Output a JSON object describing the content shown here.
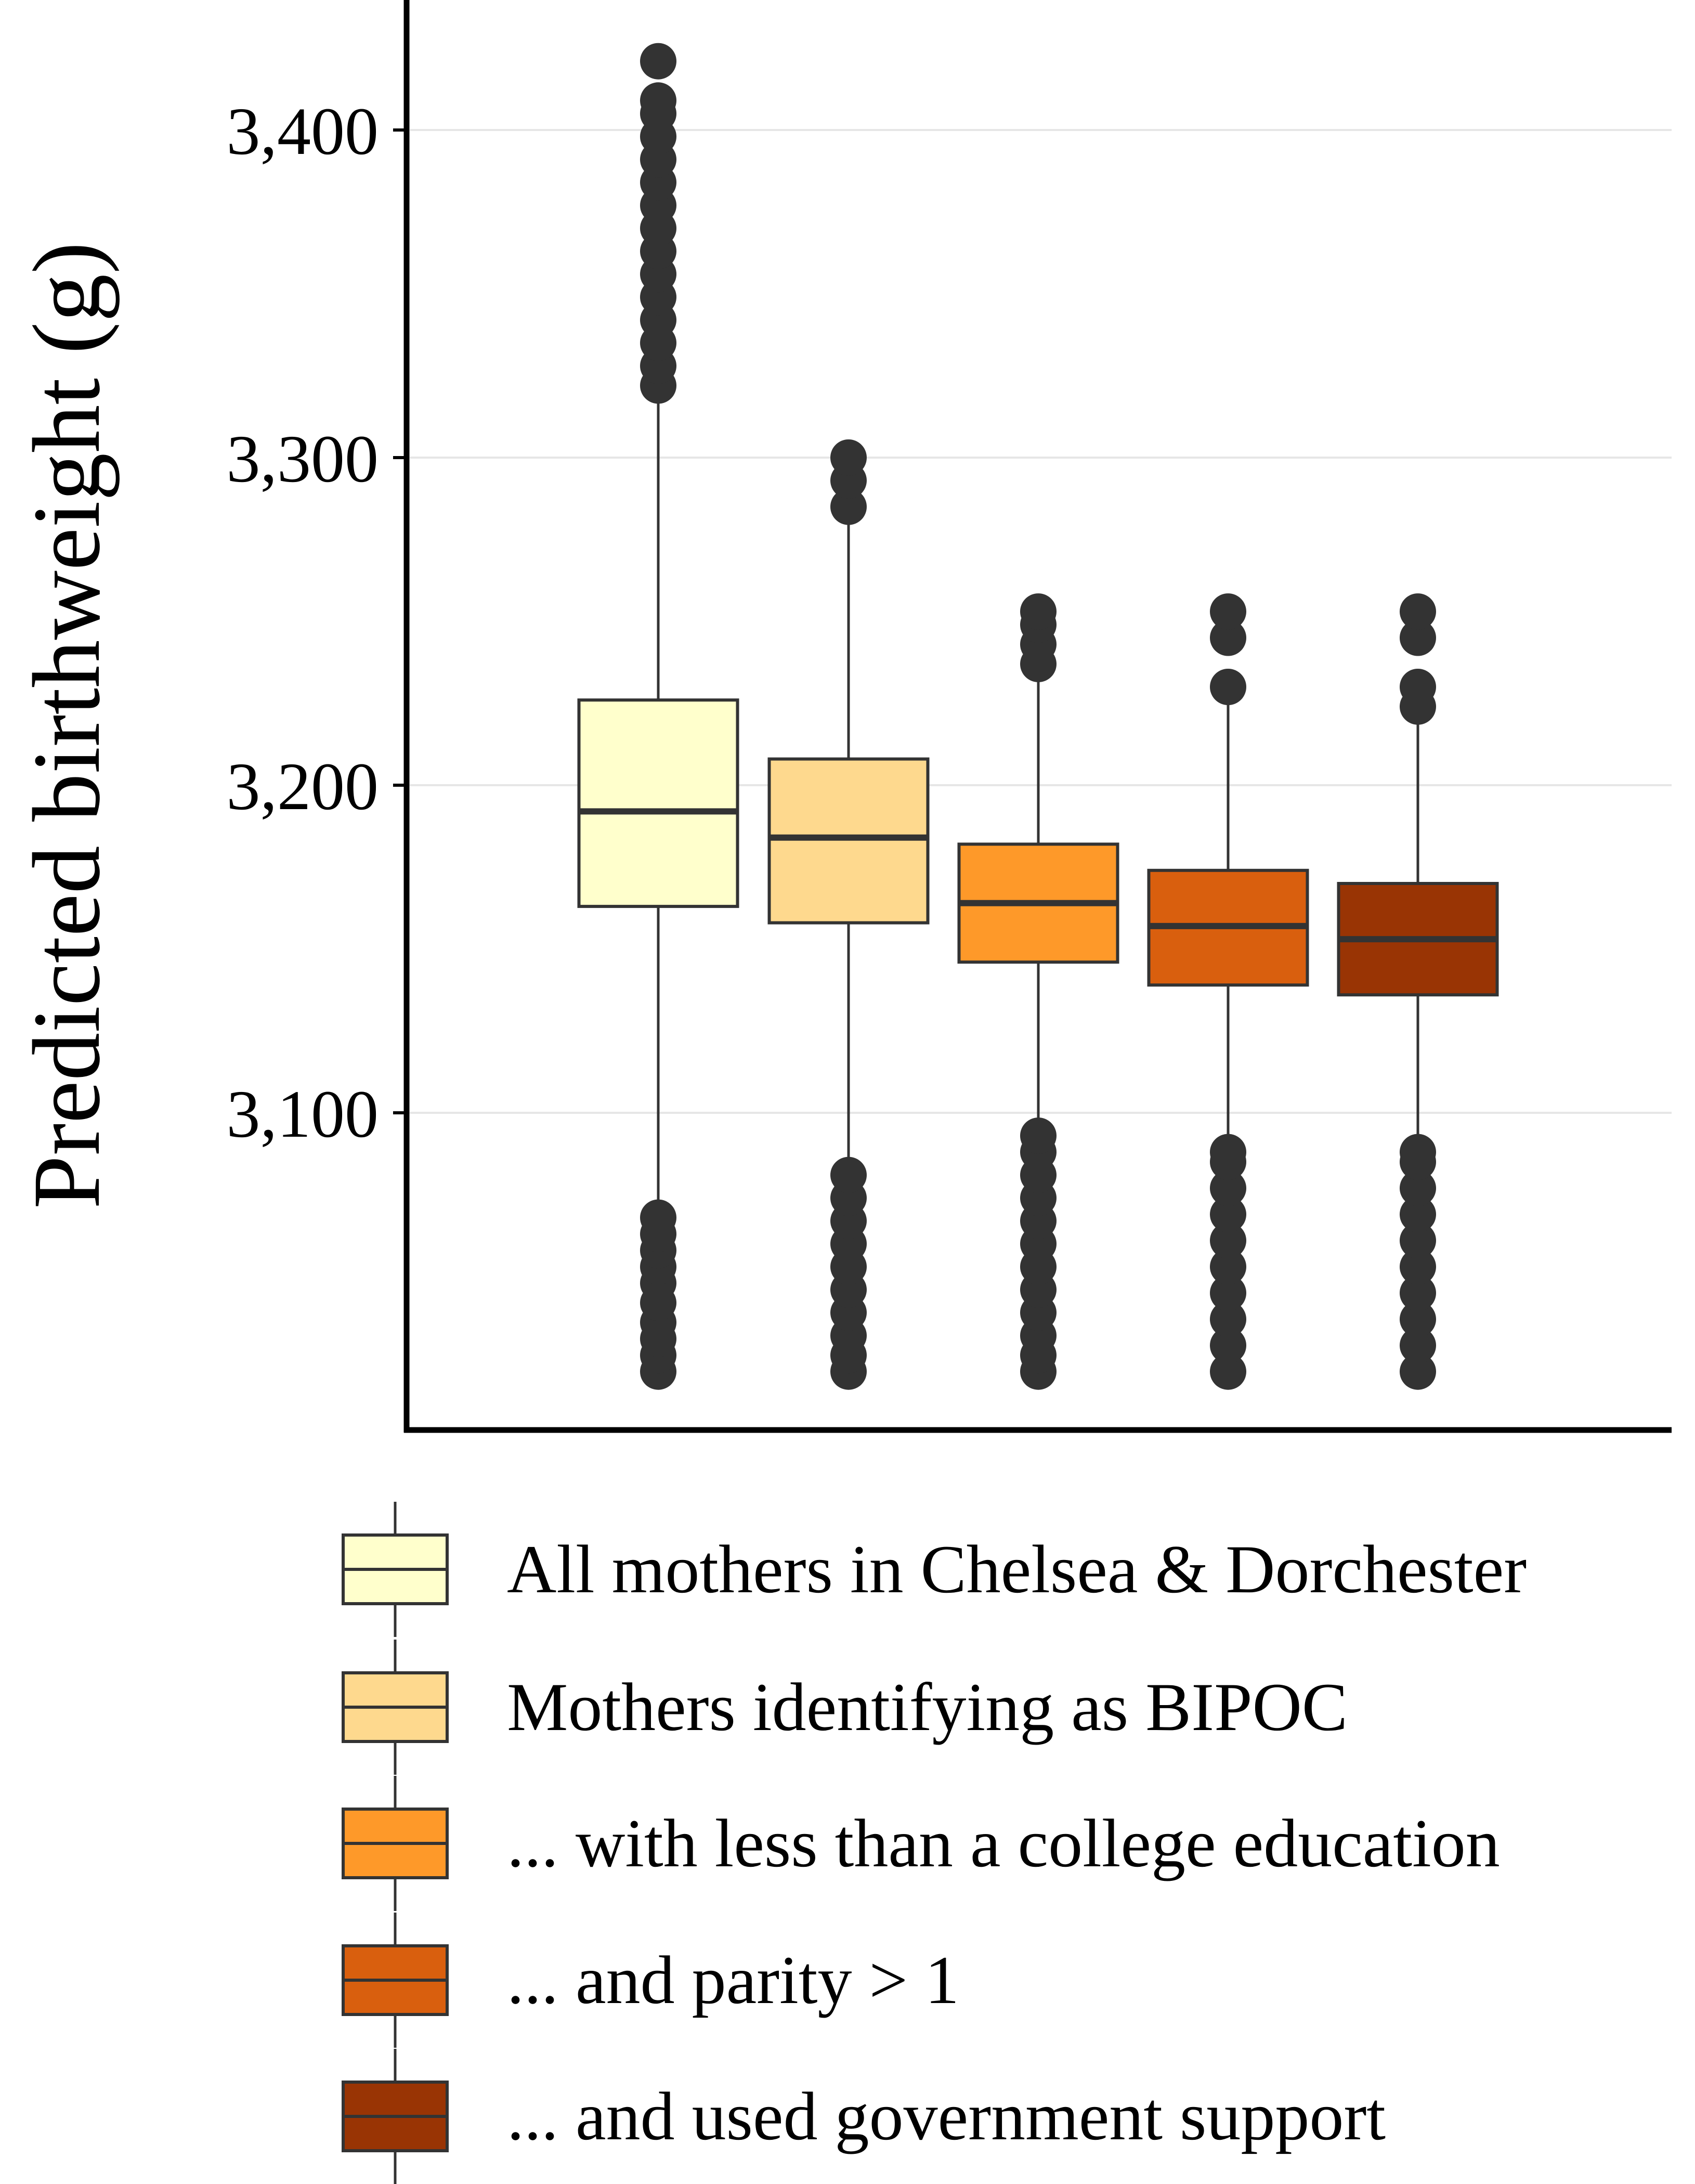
{
  "chart_data": {
    "type": "boxplot",
    "title": "",
    "xlabel": "",
    "ylabel": "Predicted birthweight (g)",
    "ylim": [
      3009,
      3444
    ],
    "yticks": [
      3100,
      3200,
      3300,
      3400
    ],
    "ytick_labels": [
      "3,100",
      "3,200",
      "3,300",
      "3,400"
    ],
    "grid": true,
    "legend_position": "bottom",
    "series": [
      {
        "name": "All mothers in Chelsea & Dorchester",
        "color": "#ffffcc",
        "q1": 3163,
        "median": 3192,
        "q3": 3226,
        "whisker_low": 3068,
        "whisker_high": 3320,
        "outliers": [
          3021,
          3026,
          3031,
          3036,
          3042,
          3048,
          3053,
          3058,
          3063,
          3068,
          3322,
          3328,
          3335,
          3342,
          3349,
          3356,
          3363,
          3370,
          3377,
          3384,
          3391,
          3398,
          3405,
          3409,
          3421
        ]
      },
      {
        "name": "Mothers identifying as BIPOC",
        "color": "#fed98e",
        "q1": 3158,
        "median": 3184,
        "q3": 3208,
        "whisker_low": 3083,
        "whisker_high": 3280,
        "outliers": [
          3021,
          3026,
          3032,
          3039,
          3046,
          3053,
          3060,
          3067,
          3074,
          3081,
          3285,
          3293,
          3300
        ]
      },
      {
        "name": "... with less than a college education",
        "color": "#fe9929",
        "q1": 3146,
        "median": 3164,
        "q3": 3182,
        "whisker_low": 3093,
        "whisker_high": 3235,
        "outliers": [
          3021,
          3026,
          3032,
          3039,
          3046,
          3053,
          3060,
          3067,
          3074,
          3081,
          3088,
          3093,
          3237,
          3243,
          3249,
          3253
        ]
      },
      {
        "name": "... and parity > 1",
        "color": "#d95f0e",
        "q1": 3139,
        "median": 3157,
        "q3": 3174,
        "whisker_low": 3088,
        "whisker_high": 3229,
        "outliers": [
          3021,
          3029,
          3037,
          3045,
          3053,
          3061,
          3069,
          3077,
          3085,
          3088,
          3230,
          3245,
          3253
        ]
      },
      {
        "name": "... and used government support",
        "color": "#993404",
        "q1": 3136,
        "median": 3153,
        "q3": 3170,
        "whisker_low": 3088,
        "whisker_high": 3222,
        "outliers": [
          3021,
          3029,
          3037,
          3045,
          3053,
          3061,
          3069,
          3077,
          3085,
          3088,
          3224,
          3230,
          3245,
          3253
        ]
      }
    ]
  }
}
